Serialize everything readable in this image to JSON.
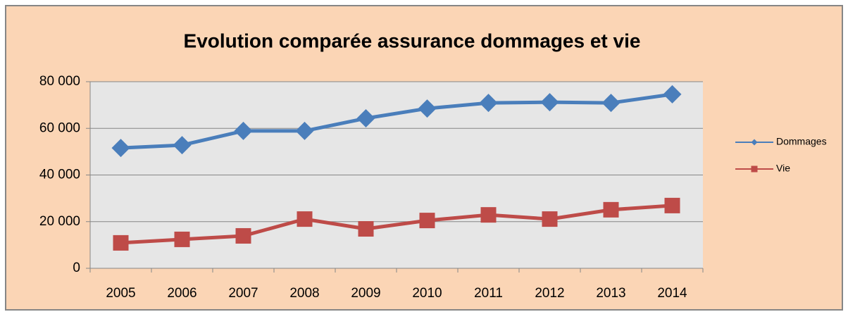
{
  "chart_data": {
    "type": "line",
    "title": "Evolution comparée assurance dommages et vie",
    "categories": [
      "2005",
      "2006",
      "2007",
      "2008",
      "2009",
      "2010",
      "2011",
      "2012",
      "2013",
      "2014"
    ],
    "series": [
      {
        "name": "Dommages",
        "color": "#4a7ebb",
        "marker": "diamond",
        "values": [
          51600,
          52800,
          58900,
          58900,
          64300,
          68500,
          70900,
          71200,
          70900,
          74600
        ]
      },
      {
        "name": "Vie",
        "color": "#be4b48",
        "marker": "square",
        "values": [
          10900,
          12400,
          13900,
          21100,
          16900,
          20500,
          22900,
          21100,
          25100,
          26900
        ]
      }
    ],
    "ylim": [
      0,
      80000
    ],
    "yticks": [
      0,
      {
        "value": 20000,
        "label": "20 000"
      },
      {
        "value": 40000,
        "label": "40 000"
      },
      {
        "value": 60000,
        "label": "60 000"
      },
      {
        "value": 80000,
        "label": "80 000"
      }
    ],
    "grid": true,
    "legend": "right"
  }
}
